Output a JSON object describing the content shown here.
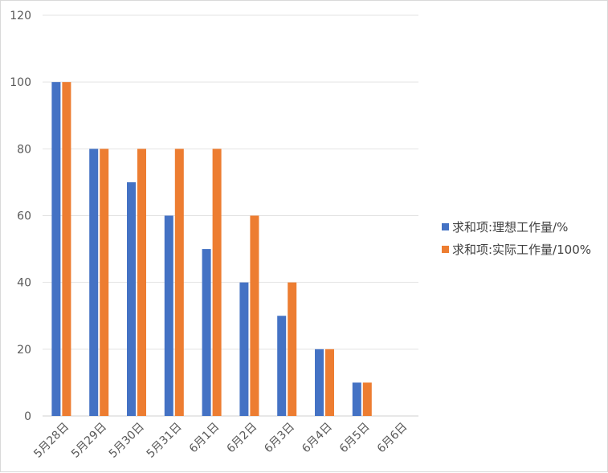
{
  "chart_data": {
    "type": "bar",
    "categories": [
      "5月28日",
      "5月29日",
      "5月30日",
      "5月31日",
      "6月1日",
      "6月2日",
      "6月3日",
      "6月4日",
      "6月5日",
      "6月6日"
    ],
    "series": [
      {
        "name": "求和项:理想工作量/%",
        "color": "#4472c4",
        "values": [
          100,
          80,
          70,
          60,
          50,
          40,
          30,
          20,
          10,
          0
        ]
      },
      {
        "name": "求和项:实际工作量/100%",
        "color": "#ed7d31",
        "values": [
          100,
          80,
          80,
          80,
          80,
          60,
          40,
          20,
          10,
          0
        ]
      }
    ],
    "y_ticks": [
      0,
      20,
      40,
      60,
      80,
      100,
      120
    ],
    "ylim": [
      0,
      120
    ],
    "grid": true,
    "legend_position": "right"
  }
}
